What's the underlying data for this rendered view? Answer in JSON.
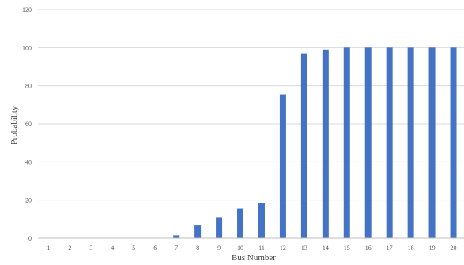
{
  "chart_data": {
    "type": "bar",
    "categories": [
      "1",
      "2",
      "3",
      "4",
      "5",
      "6",
      "7",
      "8",
      "9",
      "10",
      "11",
      "12",
      "13",
      "14",
      "15",
      "16",
      "17",
      "18",
      "19",
      "20"
    ],
    "values": [
      0,
      0,
      0,
      0,
      0,
      0,
      1.5,
      7,
      11,
      15.5,
      18.5,
      75.5,
      97,
      99,
      100,
      100,
      100,
      100,
      100,
      100
    ],
    "xlabel": "Bus Number",
    "ylabel": "Probability",
    "ylim": [
      0,
      120
    ],
    "yticks": [
      0,
      20,
      40,
      60,
      80,
      100,
      120
    ],
    "grid": true,
    "bar_color": "#4472c4"
  }
}
